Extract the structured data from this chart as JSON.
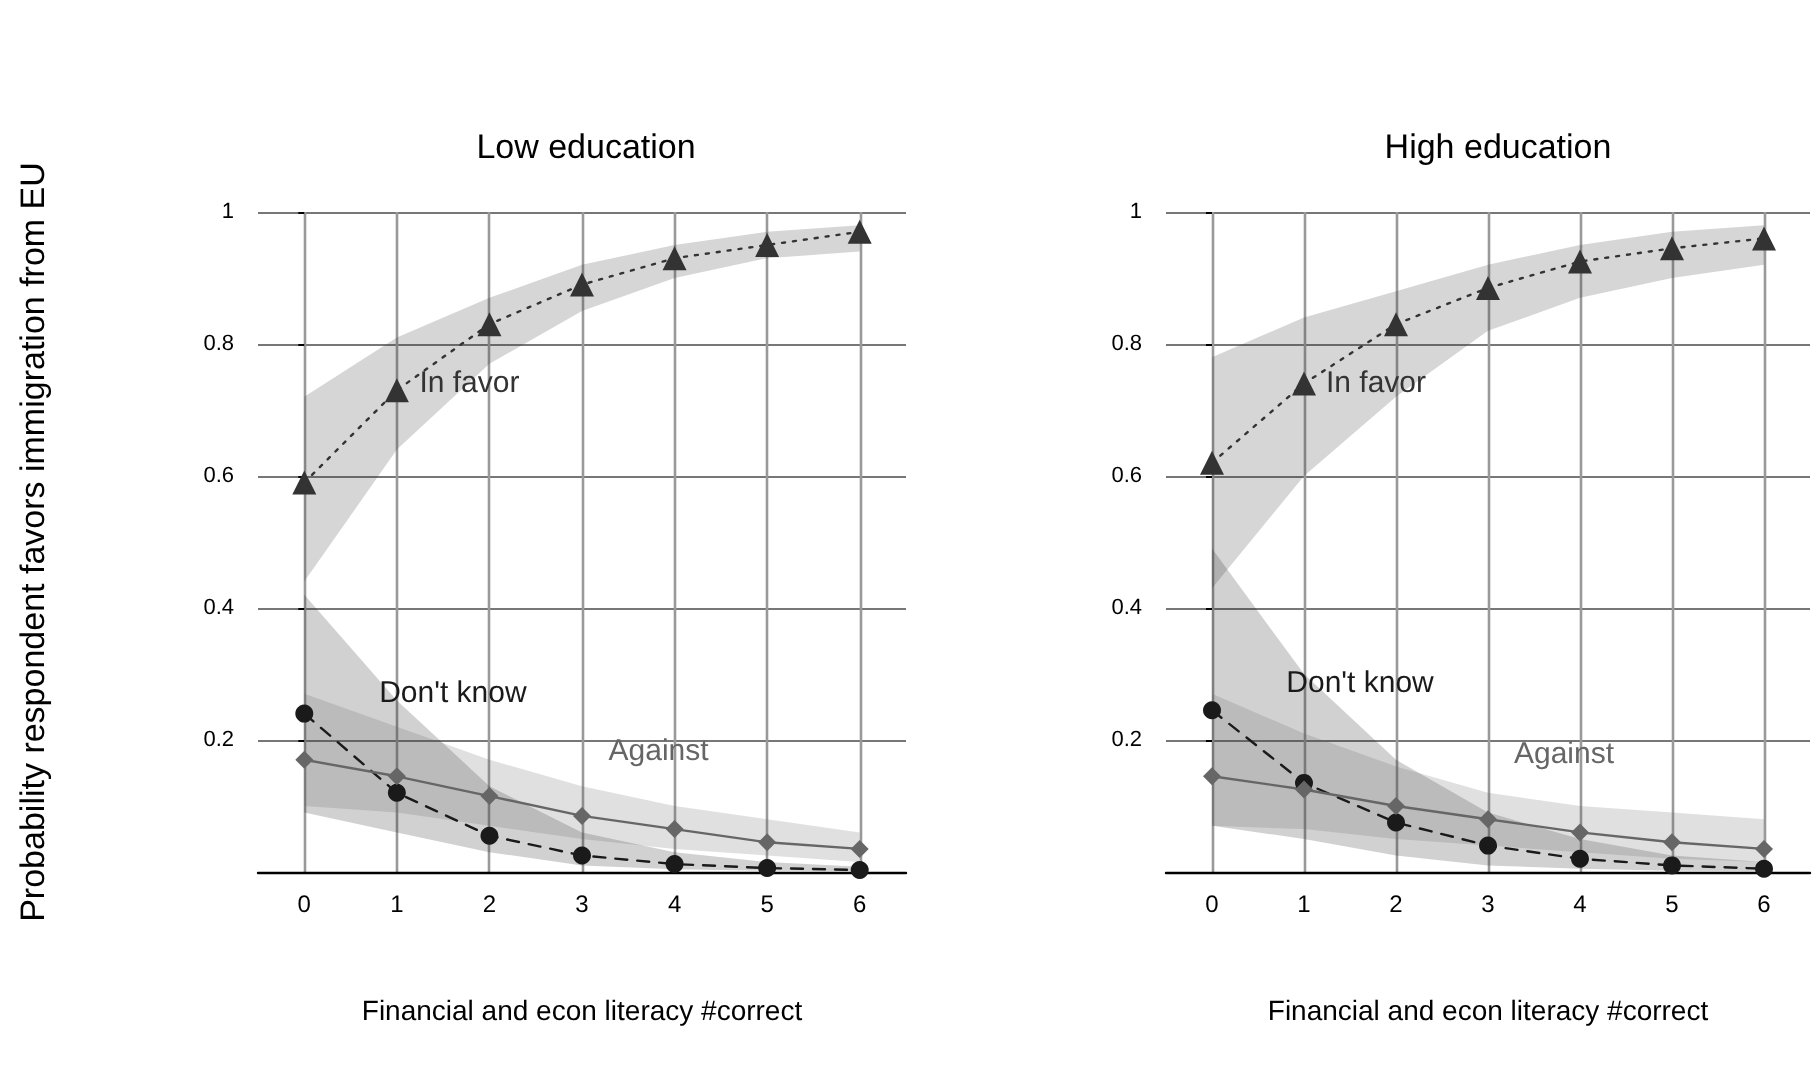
{
  "chart_data": [
    {
      "type": "line",
      "title": "Low education",
      "xlabel": "Financial and econ literacy #correct",
      "ylabel": "Probability respondent favors immigration from EU",
      "x": [
        0,
        1,
        2,
        3,
        4,
        5,
        6
      ],
      "xlim": [
        -0.5,
        6.5
      ],
      "xticks": [
        0,
        1,
        2,
        3,
        4,
        5,
        6
      ],
      "ylim": [
        0,
        1
      ],
      "yticks": [
        0.2,
        0.4,
        0.6,
        0.8,
        1
      ],
      "grid": true,
      "legend": false,
      "series": [
        {
          "name": "In favor",
          "color": "#333333",
          "marker": "triangle",
          "line_style": "dotted",
          "values": [
            0.59,
            0.73,
            0.83,
            0.89,
            0.93,
            0.95,
            0.97
          ],
          "lower": [
            0.44,
            0.64,
            0.77,
            0.85,
            0.9,
            0.93,
            0.94
          ],
          "upper": [
            0.72,
            0.81,
            0.87,
            0.92,
            0.95,
            0.97,
            0.98
          ]
        },
        {
          "name": "Don't know",
          "color": "#1a1a1a",
          "marker": "circle",
          "line_style": "dashed",
          "values": [
            0.24,
            0.12,
            0.055,
            0.025,
            0.012,
            0.006,
            0.003
          ],
          "lower": [
            0.09,
            0.06,
            0.03,
            0.01,
            0.004,
            0.002,
            0.001
          ],
          "upper": [
            0.42,
            0.26,
            0.13,
            0.06,
            0.03,
            0.015,
            0.008
          ]
        },
        {
          "name": "Against",
          "color": "#666666",
          "marker": "diamond",
          "line_style": "solid",
          "values": [
            0.17,
            0.145,
            0.115,
            0.085,
            0.065,
            0.045,
            0.035
          ],
          "lower": [
            0.1,
            0.09,
            0.07,
            0.05,
            0.035,
            0.025,
            0.015
          ],
          "upper": [
            0.27,
            0.22,
            0.17,
            0.13,
            0.1,
            0.08,
            0.06
          ]
        }
      ]
    },
    {
      "type": "line",
      "title": "High education",
      "xlabel": "Financial and econ literacy #correct",
      "x": [
        0,
        1,
        2,
        3,
        4,
        5,
        6
      ],
      "xlim": [
        -0.5,
        6.5
      ],
      "xticks": [
        0,
        1,
        2,
        3,
        4,
        5,
        6
      ],
      "ylim": [
        0,
        1
      ],
      "yticks": [
        0.2,
        0.4,
        0.6,
        0.8,
        1
      ],
      "grid": true,
      "legend": false,
      "series": [
        {
          "name": "In favor",
          "color": "#333333",
          "marker": "triangle",
          "line_style": "dotted",
          "values": [
            0.62,
            0.74,
            0.83,
            0.885,
            0.925,
            0.945,
            0.96
          ],
          "lower": [
            0.43,
            0.6,
            0.72,
            0.82,
            0.87,
            0.9,
            0.92
          ],
          "upper": [
            0.78,
            0.84,
            0.88,
            0.92,
            0.95,
            0.97,
            0.98
          ]
        },
        {
          "name": "Don't know",
          "color": "#1a1a1a",
          "marker": "circle",
          "line_style": "dashed",
          "values": [
            0.245,
            0.135,
            0.075,
            0.04,
            0.02,
            0.01,
            0.005
          ],
          "lower": [
            0.07,
            0.05,
            0.025,
            0.01,
            0.005,
            0.002,
            0.001
          ],
          "upper": [
            0.49,
            0.3,
            0.17,
            0.09,
            0.05,
            0.025,
            0.015
          ]
        },
        {
          "name": "Against",
          "color": "#666666",
          "marker": "diamond",
          "line_style": "solid",
          "values": [
            0.145,
            0.125,
            0.1,
            0.08,
            0.06,
            0.045,
            0.035
          ],
          "lower": [
            0.07,
            0.065,
            0.05,
            0.04,
            0.03,
            0.02,
            0.015
          ],
          "upper": [
            0.27,
            0.21,
            0.16,
            0.12,
            0.1,
            0.09,
            0.08
          ]
        }
      ]
    }
  ]
}
